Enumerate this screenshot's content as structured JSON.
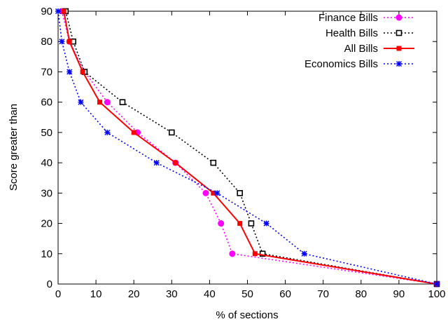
{
  "chart_data": {
    "type": "line",
    "title": "",
    "xlabel": "% of sections",
    "ylabel": "Score greater than",
    "xlim": [
      0,
      100
    ],
    "ylim": [
      0,
      90
    ],
    "xticks": [
      0,
      10,
      20,
      30,
      40,
      50,
      60,
      70,
      80,
      90,
      100
    ],
    "yticks": [
      0,
      10,
      20,
      30,
      40,
      50,
      60,
      70,
      80,
      90
    ],
    "grid": false,
    "legend_position": "top-right",
    "series": [
      {
        "name": "Finance Bills",
        "color": "#ff00ff",
        "line_style": "dotted",
        "marker": "filled-circle",
        "points": [
          [
            1,
            90
          ],
          [
            3,
            80
          ],
          [
            7,
            70
          ],
          [
            13,
            60
          ],
          [
            21,
            50
          ],
          [
            31,
            40
          ],
          [
            39,
            30
          ],
          [
            43,
            20
          ],
          [
            46,
            10
          ],
          [
            100,
            0
          ]
        ]
      },
      {
        "name": "Health Bills",
        "color": "#000000",
        "line_style": "dotted",
        "marker": "open-square",
        "points": [
          [
            2,
            90
          ],
          [
            4,
            80
          ],
          [
            7,
            70
          ],
          [
            17,
            60
          ],
          [
            30,
            50
          ],
          [
            41,
            40
          ],
          [
            48,
            30
          ],
          [
            51,
            20
          ],
          [
            54,
            10
          ],
          [
            100,
            0
          ]
        ]
      },
      {
        "name": "All Bills",
        "color": "#ff0000",
        "line_style": "solid",
        "marker": "filled-square",
        "points": [
          [
            1.5,
            90
          ],
          [
            3,
            80
          ],
          [
            6.5,
            70
          ],
          [
            11,
            60
          ],
          [
            20,
            50
          ],
          [
            31,
            40
          ],
          [
            41,
            30
          ],
          [
            48,
            20
          ],
          [
            52,
            10
          ],
          [
            100,
            0
          ]
        ]
      },
      {
        "name": "Economics Bills",
        "color": "#0000ff",
        "line_style": "dotted",
        "marker": "star",
        "points": [
          [
            0,
            90
          ],
          [
            1,
            80
          ],
          [
            3,
            70
          ],
          [
            6,
            60
          ],
          [
            13,
            50
          ],
          [
            26,
            40
          ],
          [
            42,
            30
          ],
          [
            55,
            20
          ],
          [
            65,
            10
          ],
          [
            100,
            0
          ]
        ]
      }
    ]
  }
}
